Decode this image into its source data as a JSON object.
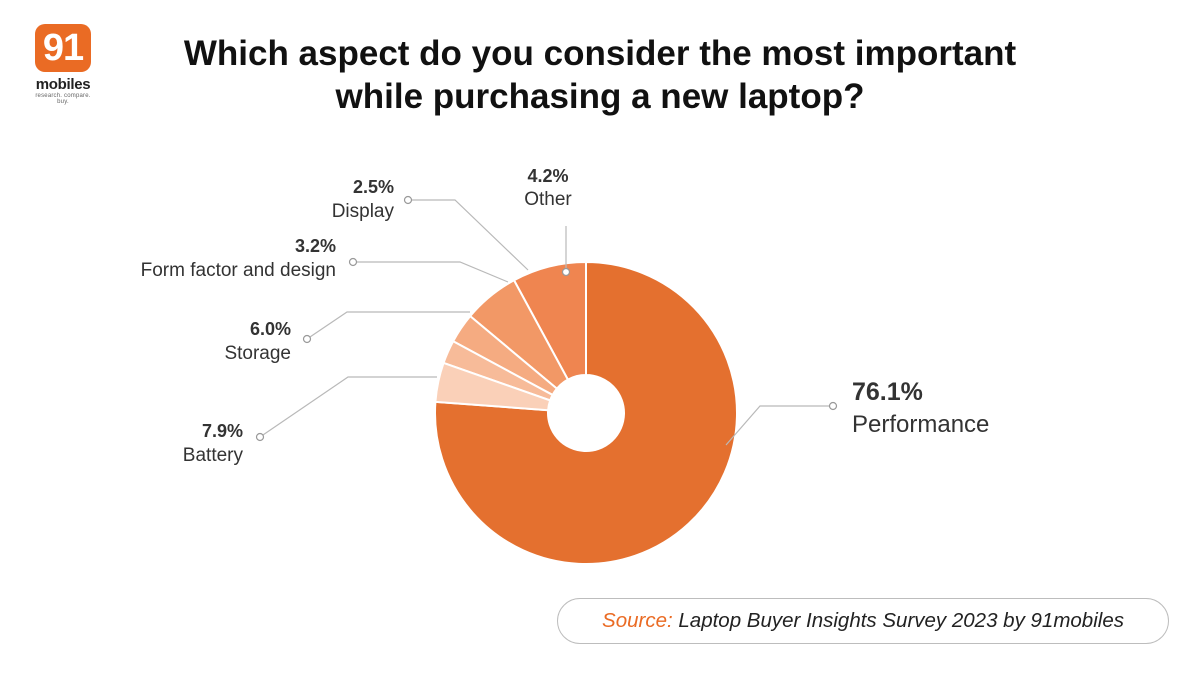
{
  "brand": {
    "logo_number": "91",
    "logo_word": "mobiles",
    "logo_tagline": "research. compare. buy.",
    "accent": "#ea6b24"
  },
  "title_line1": "Which aspect do you consider the most important",
  "title_line2": "while purchasing a new laptop?",
  "chart_data": {
    "type": "pie",
    "donut": true,
    "title": "Which aspect do you consider the most important while purchasing a new laptop?",
    "categories": [
      "Performance",
      "Battery",
      "Storage",
      "Form factor and design",
      "Display",
      "Other"
    ],
    "values": [
      76.1,
      7.9,
      6.0,
      3.2,
      2.5,
      4.2
    ],
    "value_labels": [
      "76.1%",
      "7.9%",
      "6.0%",
      "3.2%",
      "2.5%",
      "4.2%"
    ],
    "colors": [
      "#e4702f",
      "#ef8550",
      "#f29866",
      "#f5ab81",
      "#f7bb99",
      "#fad0b8"
    ],
    "unit": "%"
  },
  "source": {
    "label": "Source:",
    "text": "Laptop Buyer Insights Survey 2023 by 91mobiles",
    "label_color": "#ea6b24"
  }
}
